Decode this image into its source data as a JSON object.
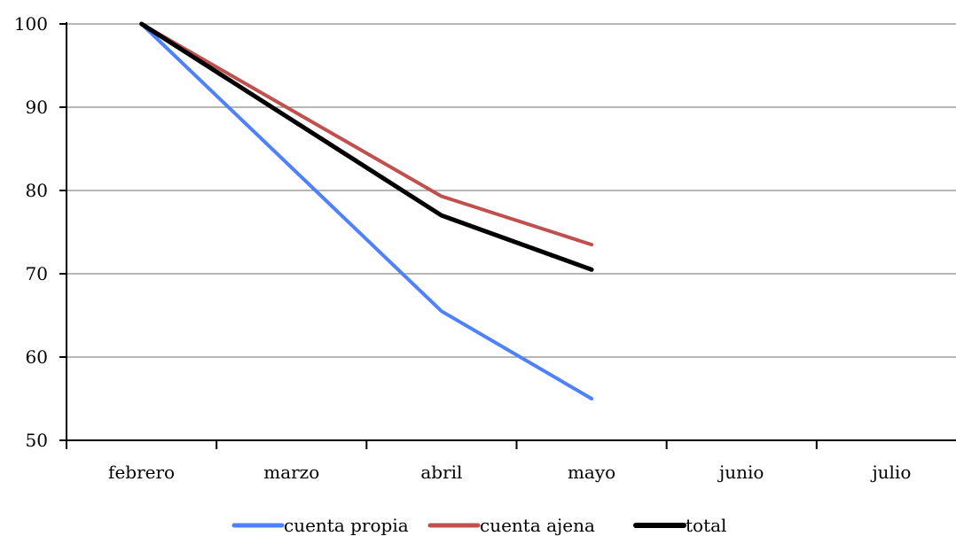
{
  "chart_data": {
    "type": "line",
    "categories": [
      "febrero",
      "marzo",
      "abril",
      "mayo",
      "junio",
      "julio"
    ],
    "ylim": [
      50,
      100
    ],
    "yticks": [
      50,
      60,
      70,
      80,
      90,
      100
    ],
    "grid": true,
    "legend_position": "bottom",
    "series": [
      {
        "name": "cuenta propia",
        "color": "#4f81fd",
        "values": [
          100,
          null,
          65.5,
          55,
          null,
          null
        ]
      },
      {
        "name": "cuenta ajena",
        "color": "#c0504d",
        "values": [
          100,
          null,
          79.3,
          73.5,
          null,
          null
        ]
      },
      {
        "name": "total",
        "color": "#000000",
        "values": [
          100,
          null,
          77,
          70.5,
          null,
          null
        ]
      }
    ]
  }
}
